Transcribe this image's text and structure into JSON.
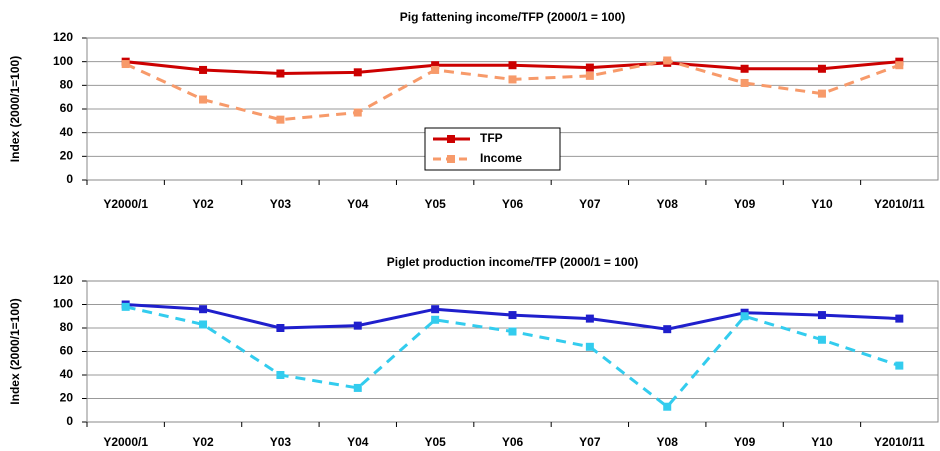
{
  "chart_data": [
    {
      "type": "line",
      "title": "Pig fattening income/TFP (2000/1 = 100)",
      "y_label": "Index (2000/1=100)",
      "categories": [
        "Y2000/1",
        "Y02",
        "Y03",
        "Y04",
        "Y05",
        "Y06",
        "Y07",
        "Y08",
        "Y09",
        "Y10",
        "Y2010/11"
      ],
      "series": [
        {
          "name": "TFP",
          "color": "#cc0000",
          "style": "solid",
          "values": [
            100,
            93,
            90,
            91,
            97,
            97,
            95,
            99,
            94,
            94,
            100
          ]
        },
        {
          "name": "Income",
          "color": "#f79a6a",
          "style": "dashed",
          "values": [
            98,
            68,
            51,
            57,
            93,
            85,
            88,
            101,
            82,
            73,
            97
          ]
        }
      ],
      "ylim": [
        0,
        120
      ],
      "yticks": [
        0,
        20,
        40,
        60,
        80,
        100,
        120
      ],
      "grid": true,
      "legend": "center"
    },
    {
      "type": "line",
      "title": "Piglet production income/TFP (2000/1 = 100)",
      "y_label": "Index (2000/1=100)",
      "categories": [
        "Y2000/1",
        "Y02",
        "Y03",
        "Y04",
        "Y05",
        "Y06",
        "Y07",
        "Y08",
        "Y09",
        "Y10",
        "Y2010/11"
      ],
      "series": [
        {
          "color": "#1f1fcc",
          "style": "solid",
          "values": [
            100,
            96,
            80,
            82,
            96,
            91,
            88,
            79,
            93,
            91,
            88
          ]
        },
        {
          "color": "#33ccee",
          "style": "dashed",
          "values": [
            98,
            83,
            40,
            29,
            87,
            77,
            64,
            13,
            90,
            70,
            48
          ]
        }
      ],
      "ylim": [
        0,
        120
      ],
      "yticks": [
        0,
        20,
        40,
        60,
        80,
        100,
        120
      ],
      "grid": true
    }
  ]
}
